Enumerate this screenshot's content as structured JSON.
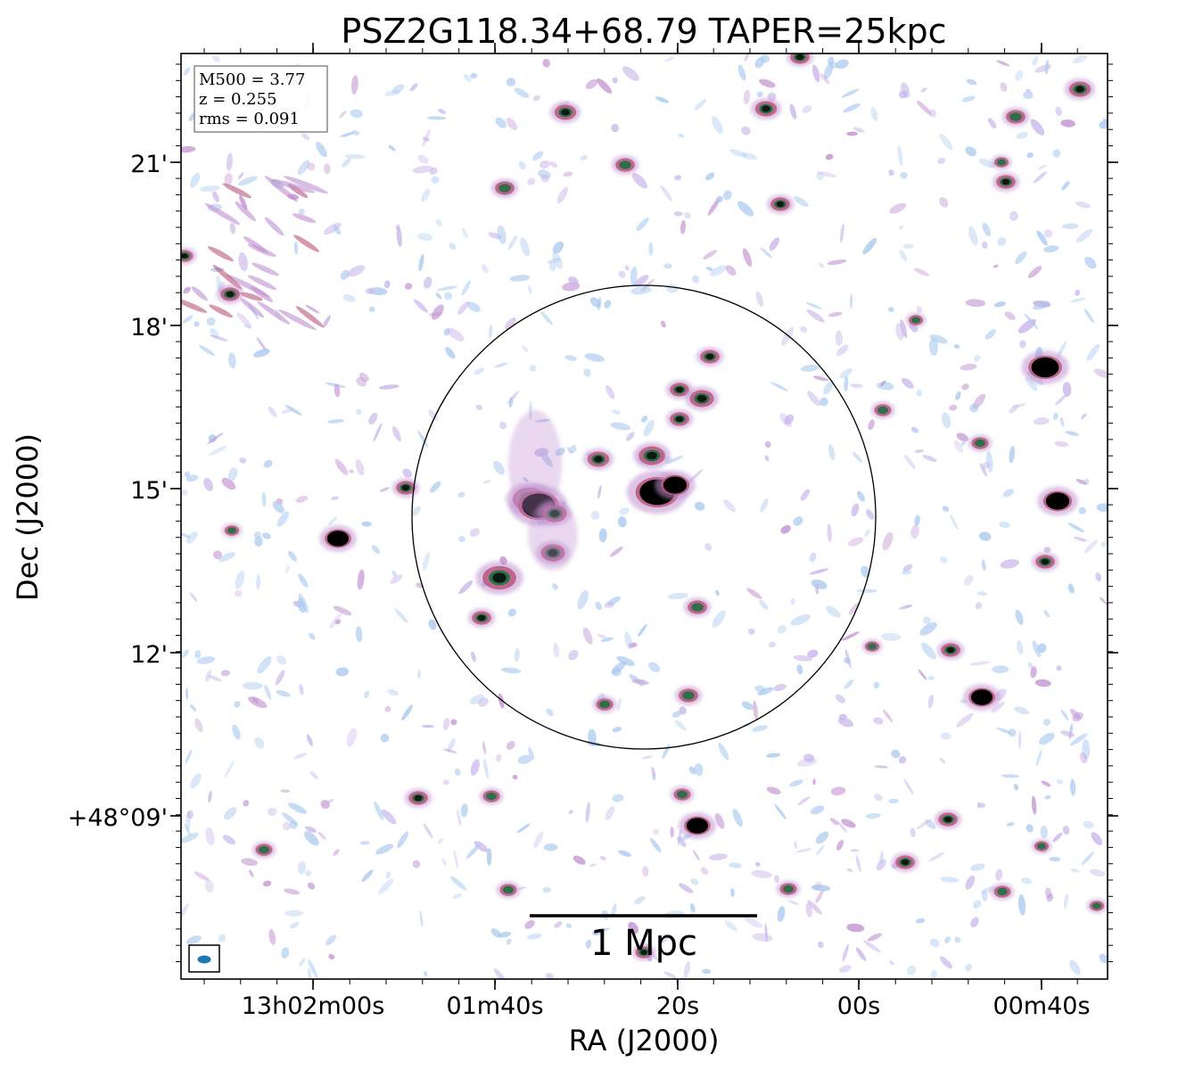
{
  "title": "PSZ2G118.34+68.79 TAPER=25kpc",
  "info_box": {
    "m500": "M500 = 3.77",
    "z": "z = 0.255",
    "rms": "rms = 0.091"
  },
  "axes": {
    "xlabel": "RA (J2000)",
    "ylabel": "Dec (J2000)",
    "x_ticks": [
      "13h02m00s",
      "01m40s",
      "20s",
      "00s",
      "00m40s"
    ],
    "y_ticks": [
      "21'",
      "18'",
      "15'",
      "12'",
      "+48°09'"
    ]
  },
  "scale_bar": {
    "label": "1 Mpc"
  },
  "colors": {
    "faint_emission": "#a9c9ef",
    "mid_emission": "#c08fd0",
    "bright_emission": "#b9577a",
    "peak_emission": "#2f6e4a",
    "core": "#000000"
  }
}
